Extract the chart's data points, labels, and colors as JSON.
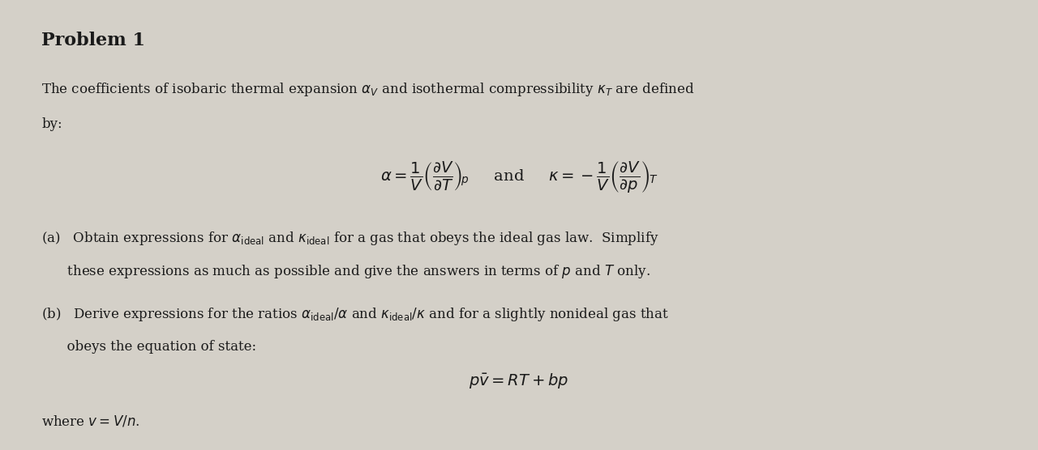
{
  "background_color": "#d4d0c8",
  "text_color": "#1a1a1a",
  "title": "Problem 1",
  "intro_line1": "The coefficients of isobaric thermal expansion α",
  "intro_line2": " and isothermal compressibility κ",
  "fig_width": 12.8,
  "fig_height": 5.56,
  "dpi": 100
}
